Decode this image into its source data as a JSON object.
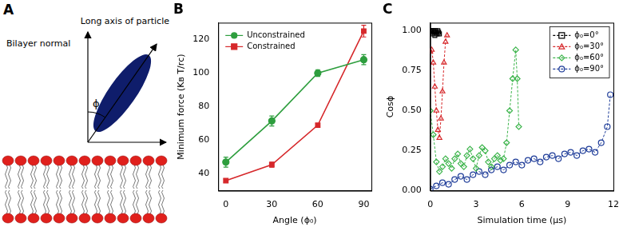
{
  "diagram": {
    "title": "A",
    "labels": {
      "normal": "Bilayer normal",
      "long_axis": "Long axis of particle",
      "angle": "ϕ"
    }
  },
  "chart_data": [
    {
      "type": "line",
      "title": "B",
      "x_label": "Angle (ϕ₀)",
      "y_label": "Minimum force (Kʙ T/rᴄ)",
      "x": [
        0,
        30,
        60,
        90
      ],
      "xlim": [
        -5,
        95
      ],
      "xticks": [
        0,
        30,
        60,
        90
      ],
      "ylim": [
        30,
        130
      ],
      "yticks": [
        40,
        60,
        80,
        100,
        120
      ],
      "grid": false,
      "legend": "top-left",
      "series": [
        {
          "name": "Unconstrained",
          "color": "#2e9e3e",
          "marker": "circle",
          "line_style": "solid",
          "values": [
            47,
            71.5,
            100,
            108
          ],
          "errors": [
            3,
            3,
            2,
            3
          ]
        },
        {
          "name": "Constrained",
          "color": "#d6282b",
          "marker": "square",
          "line_style": "solid",
          "values": [
            36,
            45.5,
            69,
            125
          ],
          "errors": [
            1,
            1.5,
            1,
            3.5
          ]
        }
      ]
    },
    {
      "type": "line",
      "title": "C",
      "x_label": "Simulation time (µs)",
      "y_label": "Cosϕ",
      "xlim": [
        0,
        12
      ],
      "xticks": [
        0,
        3,
        6,
        9,
        12
      ],
      "ylim": [
        0,
        1.05
      ],
      "yticks": [
        {
          "value": 0,
          "label": "0.00"
        },
        {
          "value": 0.25,
          "label": "0.25"
        },
        {
          "value": 0.5,
          "label": "0.50"
        },
        {
          "value": 0.75,
          "label": "0.75"
        },
        {
          "value": 1,
          "label": "1.00"
        }
      ],
      "grid": false,
      "legend": "top-right",
      "series": [
        {
          "name": "ϕ₀=0°",
          "color": "#000000",
          "marker": "square",
          "line_style": "dashed",
          "x": [
            0,
            0.05,
            0.1,
            0.15,
            0.2,
            0.25,
            0.3,
            0.35,
            0.4,
            0.45,
            0.5,
            0.55,
            0.6
          ],
          "values": [
            1.0,
            0.99,
            1.0,
            0.98,
            1.0,
            0.99,
            0.97,
            1.0,
            0.99,
            0.98,
            1.0,
            0.99,
            0.98
          ]
        },
        {
          "name": "ϕ₀=30°",
          "color": "#d6282b",
          "marker": "triangle",
          "line_style": "dashed",
          "x": [
            0,
            0.1,
            0.2,
            0.3,
            0.4,
            0.5,
            0.6,
            0.7,
            0.8,
            0.9,
            1.0,
            1.1
          ],
          "values": [
            0.87,
            0.88,
            0.8,
            0.65,
            0.5,
            0.38,
            0.33,
            0.45,
            0.62,
            0.8,
            0.93,
            0.97
          ]
        },
        {
          "name": "ϕ₀=60°",
          "color": "#3cb44b",
          "marker": "diamond",
          "line_style": "dashed",
          "x": [
            0,
            0.2,
            0.4,
            0.6,
            0.8,
            1.0,
            1.2,
            1.4,
            1.6,
            1.8,
            2.0,
            2.2,
            2.4,
            2.6,
            2.8,
            3.0,
            3.2,
            3.4,
            3.6,
            3.8,
            4.0,
            4.2,
            4.4,
            4.6,
            4.8,
            5.0,
            5.2,
            5.4,
            5.6,
            5.7,
            5.8
          ],
          "values": [
            0.5,
            0.35,
            0.18,
            0.12,
            0.15,
            0.2,
            0.17,
            0.14,
            0.2,
            0.23,
            0.17,
            0.15,
            0.22,
            0.26,
            0.2,
            0.14,
            0.22,
            0.27,
            0.25,
            0.18,
            0.15,
            0.2,
            0.22,
            0.19,
            0.2,
            0.3,
            0.5,
            0.7,
            0.88,
            0.7,
            0.4
          ]
        },
        {
          "name": "ϕ₀=90°",
          "color": "#1f3d99",
          "marker": "circle",
          "line_style": "dashed",
          "x": [
            0,
            0.4,
            0.8,
            1.2,
            1.6,
            2.0,
            2.4,
            2.8,
            3.2,
            3.6,
            4.0,
            4.4,
            4.8,
            5.2,
            5.6,
            6.0,
            6.4,
            6.8,
            7.2,
            7.6,
            8.0,
            8.4,
            8.8,
            9.2,
            9.6,
            10.0,
            10.4,
            10.8,
            11.2,
            11.6,
            11.8
          ],
          "values": [
            0.01,
            0.03,
            0.05,
            0.04,
            0.07,
            0.09,
            0.07,
            0.1,
            0.12,
            0.1,
            0.13,
            0.15,
            0.13,
            0.16,
            0.18,
            0.16,
            0.19,
            0.2,
            0.18,
            0.21,
            0.22,
            0.2,
            0.23,
            0.24,
            0.22,
            0.25,
            0.26,
            0.24,
            0.3,
            0.4,
            0.6
          ]
        }
      ]
    }
  ]
}
